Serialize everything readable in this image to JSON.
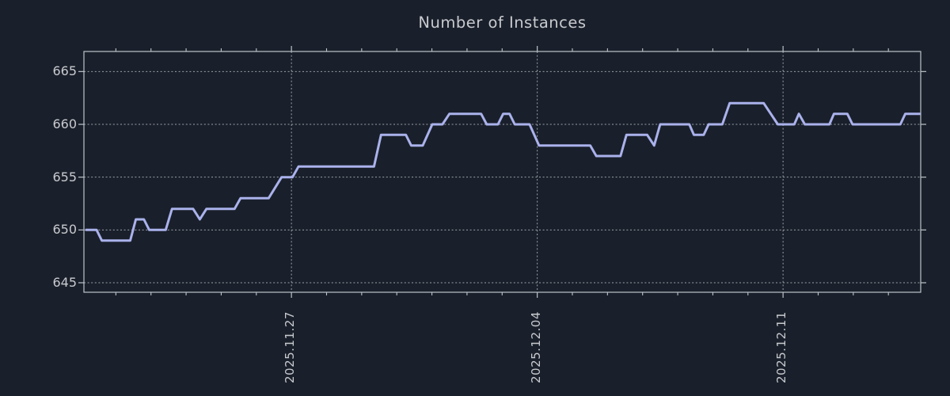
{
  "chart_data": {
    "type": "line",
    "title": "Number of Instances",
    "xlabel": "",
    "ylabel": "",
    "legend": null,
    "grid": "dotted",
    "colors": {
      "background": "#1a202b",
      "line": "#aab2ec",
      "grid": "#9ca1a8",
      "axis": "#bec3c8",
      "text": "#c8cace"
    },
    "ylim": [
      644.1,
      666.9
    ],
    "yticks": [
      {
        "value": 645,
        "label": "645"
      },
      {
        "value": 650,
        "label": "650"
      },
      {
        "value": 655,
        "label": "655"
      },
      {
        "value": 660,
        "label": "660"
      },
      {
        "value": 665,
        "label": "665"
      }
    ],
    "xlim_days": [
      0.09,
      23.92
    ],
    "x_unit": "days-from-axis-origin",
    "xticks_major": [
      {
        "day": 6,
        "label": "2025.11.27"
      },
      {
        "day": 13,
        "label": "2025.12.04"
      },
      {
        "day": 20,
        "label": "2025.12.11"
      }
    ],
    "xticks_minor_every_days": 1,
    "series": [
      {
        "name": "instances",
        "points_day_value": [
          [
            0.13,
            650
          ],
          [
            0.45,
            650
          ],
          [
            0.6,
            649
          ],
          [
            1.41,
            649
          ],
          [
            1.57,
            651
          ],
          [
            1.8,
            651
          ],
          [
            1.95,
            650
          ],
          [
            2.42,
            650
          ],
          [
            2.6,
            652
          ],
          [
            3.2,
            652
          ],
          [
            3.39,
            651
          ],
          [
            3.58,
            652
          ],
          [
            4.38,
            652
          ],
          [
            4.55,
            653
          ],
          [
            5.35,
            653
          ],
          [
            5.72,
            655
          ],
          [
            6.03,
            655
          ],
          [
            6.2,
            656
          ],
          [
            8.35,
            656
          ],
          [
            8.55,
            659
          ],
          [
            9.26,
            659
          ],
          [
            9.41,
            658
          ],
          [
            9.74,
            658
          ],
          [
            10.01,
            660
          ],
          [
            10.3,
            660
          ],
          [
            10.5,
            661
          ],
          [
            11.4,
            661
          ],
          [
            11.56,
            660
          ],
          [
            11.88,
            660
          ],
          [
            12.03,
            661
          ],
          [
            12.21,
            661
          ],
          [
            12.36,
            660
          ],
          [
            12.78,
            660
          ],
          [
            13.05,
            658
          ],
          [
            14.51,
            658
          ],
          [
            14.68,
            657
          ],
          [
            15.37,
            657
          ],
          [
            15.54,
            659
          ],
          [
            16.13,
            659
          ],
          [
            16.33,
            658
          ],
          [
            16.5,
            660
          ],
          [
            17.33,
            660
          ],
          [
            17.46,
            659
          ],
          [
            17.74,
            659
          ],
          [
            17.88,
            660
          ],
          [
            18.27,
            660
          ],
          [
            18.48,
            662
          ],
          [
            19.45,
            662
          ],
          [
            19.85,
            660
          ],
          [
            20.32,
            660
          ],
          [
            20.45,
            661
          ],
          [
            20.62,
            660
          ],
          [
            21.32,
            660
          ],
          [
            21.45,
            661
          ],
          [
            21.83,
            661
          ],
          [
            21.98,
            660
          ],
          [
            23.34,
            660
          ],
          [
            23.48,
            661
          ],
          [
            23.92,
            661
          ]
        ]
      }
    ]
  }
}
